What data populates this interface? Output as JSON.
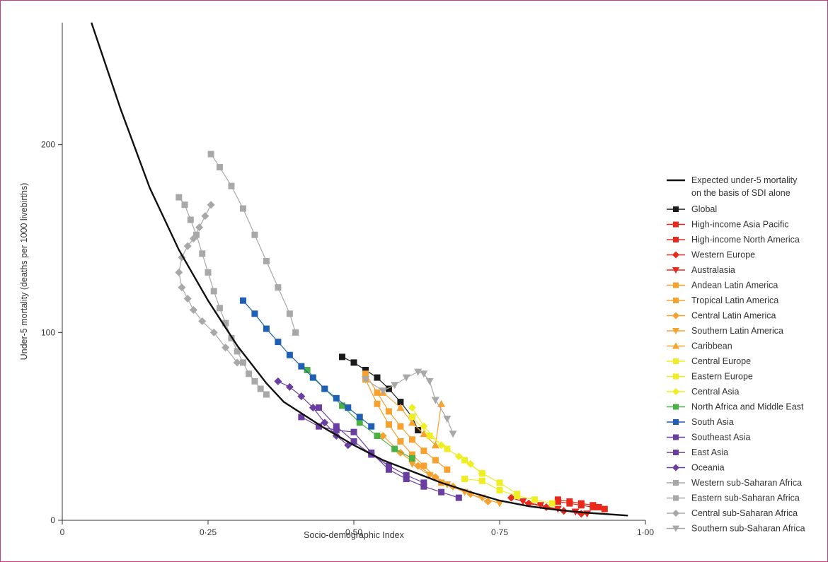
{
  "chart_data": {
    "type": "scatter",
    "title": "",
    "xlabel": "Socio-demographic Index",
    "ylabel": "Under-5 mortality (deaths per 1000 livebirths)",
    "xlim": [
      0,
      1.0
    ],
    "ylim": [
      0,
      265
    ],
    "xticks": [
      {
        "v": 0,
        "label": "0"
      },
      {
        "v": 0.25,
        "label": "0·25"
      },
      {
        "v": 0.5,
        "label": "0·50"
      },
      {
        "v": 0.75,
        "label": "0·75"
      },
      {
        "v": 1.0,
        "label": "1·00"
      }
    ],
    "yticks": [
      {
        "v": 0,
        "label": "0"
      },
      {
        "v": 100,
        "label": "100"
      },
      {
        "v": 200,
        "label": "200"
      }
    ],
    "grid": false,
    "legend_position": "right",
    "expected_curve": {
      "name_lines": [
        "Expected under-5 mortality",
        "on the basis of SDI alone"
      ],
      "color": "#111111",
      "x": [
        0.05,
        0.1,
        0.15,
        0.2,
        0.25,
        0.3,
        0.35,
        0.38,
        0.42,
        0.45,
        0.5,
        0.55,
        0.6,
        0.65,
        0.7,
        0.75,
        0.8,
        0.85,
        0.9,
        0.97
      ],
      "y": [
        265,
        219,
        177,
        144,
        117,
        93,
        73,
        63,
        55,
        49,
        40,
        32,
        26,
        20,
        15,
        10.5,
        7.5,
        5.5,
        4,
        2.5
      ]
    },
    "series": [
      {
        "name": "Global",
        "color": "#1a1a1a",
        "marker": "square",
        "x": [
          0.48,
          0.5,
          0.52,
          0.54,
          0.56,
          0.58,
          0.6,
          0.61
        ],
        "y": [
          87,
          84,
          80,
          76,
          70,
          63,
          55,
          48
        ]
      },
      {
        "name": "High-income Asia Pacific",
        "color": "#e8291c",
        "marker": "square",
        "x": [
          0.85,
          0.87,
          0.89,
          0.91,
          0.93
        ],
        "y": [
          10,
          9,
          8,
          7,
          6
        ]
      },
      {
        "name": "High-income North America",
        "color": "#e8291c",
        "marker": "square",
        "x": [
          0.85,
          0.87,
          0.89,
          0.91,
          0.92
        ],
        "y": [
          11,
          10,
          9,
          8,
          7
        ]
      },
      {
        "name": "Western Europe",
        "color": "#e8291c",
        "marker": "diamond",
        "x": [
          0.77,
          0.8,
          0.83,
          0.86,
          0.89
        ],
        "y": [
          12,
          9,
          7,
          5,
          3.5
        ]
      },
      {
        "name": "Australasia",
        "color": "#e8291c",
        "marker": "triangle-down",
        "x": [
          0.79,
          0.82,
          0.85,
          0.88,
          0.9
        ],
        "y": [
          10,
          8,
          6,
          4.5,
          3.5
        ]
      },
      {
        "name": "Andean Latin America",
        "color": "#f7a12f",
        "marker": "square",
        "x": [
          0.52,
          0.54,
          0.56,
          0.58,
          0.6,
          0.62,
          0.64,
          0.66
        ],
        "y": [
          78,
          68,
          58,
          50,
          43,
          37,
          32,
          27
        ]
      },
      {
        "name": "Tropical Latin America",
        "color": "#f7a12f",
        "marker": "square",
        "x": [
          0.52,
          0.54,
          0.56,
          0.58,
          0.6,
          0.62,
          0.65
        ],
        "y": [
          75,
          62,
          51,
          42,
          35,
          29,
          20
        ]
      },
      {
        "name": "Central Latin America",
        "color": "#f7a12f",
        "marker": "diamond",
        "x": [
          0.55,
          0.58,
          0.61,
          0.64,
          0.67,
          0.7,
          0.73
        ],
        "y": [
          45,
          36,
          29,
          23,
          18,
          14,
          10
        ]
      },
      {
        "name": "Southern Latin America",
        "color": "#f7a12f",
        "marker": "triangle-down",
        "x": [
          0.6,
          0.63,
          0.66,
          0.69,
          0.72,
          0.75
        ],
        "y": [
          30,
          24,
          19,
          15,
          12,
          9
        ]
      },
      {
        "name": "Caribbean",
        "color": "#f7a12f",
        "marker": "triangle-up",
        "x": [
          0.55,
          0.58,
          0.6,
          0.62,
          0.64,
          0.65
        ],
        "y": [
          68,
          60,
          52,
          46,
          40,
          62
        ]
      },
      {
        "name": "Central Europe",
        "color": "#eeee22",
        "marker": "square",
        "x": [
          0.69,
          0.72,
          0.75,
          0.78,
          0.81,
          0.84
        ],
        "y": [
          22,
          21,
          16,
          13,
          11,
          9
        ]
      },
      {
        "name": "Eastern Europe",
        "color": "#eeee22",
        "marker": "square",
        "x": [
          0.6,
          0.63,
          0.66,
          0.69,
          0.72,
          0.75,
          0.78
        ],
        "y": [
          55,
          45,
          38,
          32,
          25,
          20,
          14
        ]
      },
      {
        "name": "Central Asia",
        "color": "#eeee22",
        "marker": "diamond",
        "x": [
          0.6,
          0.62,
          0.65,
          0.68,
          0.7,
          0.72
        ],
        "y": [
          60,
          50,
          40,
          34,
          30,
          25
        ]
      },
      {
        "name": "North Africa and Middle East",
        "color": "#4ab147",
        "marker": "square",
        "x": [
          0.42,
          0.45,
          0.48,
          0.51,
          0.54,
          0.57,
          0.6
        ],
        "y": [
          80,
          70,
          61,
          52,
          45,
          38,
          33
        ]
      },
      {
        "name": "South Asia",
        "color": "#1f5fb4",
        "marker": "square",
        "x": [
          0.31,
          0.33,
          0.35,
          0.37,
          0.39,
          0.41,
          0.43,
          0.45,
          0.47,
          0.49,
          0.51,
          0.53
        ],
        "y": [
          117,
          110,
          102,
          95,
          88,
          82,
          76,
          70,
          65,
          60,
          55,
          50
        ]
      },
      {
        "name": "Southeast Asia",
        "color": "#6a3da0",
        "marker": "square",
        "x": [
          0.44,
          0.47,
          0.5,
          0.53,
          0.56,
          0.59,
          0.62
        ],
        "y": [
          60,
          50,
          42,
          35,
          29,
          24,
          20
        ]
      },
      {
        "name": "East Asia",
        "color": "#6a3da0",
        "marker": "square",
        "x": [
          0.41,
          0.44,
          0.47,
          0.5,
          0.53,
          0.56,
          0.59,
          0.62,
          0.65,
          0.68
        ],
        "y": [
          55,
          50,
          48,
          47,
          36,
          27,
          22,
          18,
          15,
          12
        ]
      },
      {
        "name": "Oceania",
        "color": "#6a3da0",
        "marker": "diamond",
        "x": [
          0.37,
          0.39,
          0.41,
          0.43,
          0.45,
          0.47,
          0.49
        ],
        "y": [
          74,
          71,
          66,
          60,
          52,
          45,
          40
        ]
      },
      {
        "name": "Western sub-Saharan Africa",
        "color": "#a8a8a8",
        "marker": "square",
        "x": [
          0.255,
          0.27,
          0.29,
          0.31,
          0.33,
          0.35,
          0.37,
          0.39,
          0.4
        ],
        "y": [
          195,
          188,
          178,
          166,
          152,
          138,
          124,
          110,
          100
        ]
      },
      {
        "name": "Eastern sub-Saharan Africa",
        "color": "#a8a8a8",
        "marker": "square",
        "x": [
          0.2,
          0.21,
          0.22,
          0.23,
          0.24,
          0.25,
          0.26,
          0.27,
          0.28,
          0.29,
          0.3,
          0.31,
          0.32,
          0.33,
          0.34,
          0.35
        ],
        "y": [
          172,
          168,
          160,
          152,
          142,
          132,
          122,
          113,
          105,
          97,
          90,
          84,
          78,
          74,
          70,
          67
        ]
      },
      {
        "name": "Central sub-Saharan Africa",
        "color": "#a8a8a8",
        "marker": "diamond",
        "x": [
          0.255,
          0.245,
          0.235,
          0.225,
          0.215,
          0.205,
          0.2,
          0.205,
          0.215,
          0.225,
          0.24,
          0.26,
          0.28,
          0.3
        ],
        "y": [
          168,
          162,
          156,
          150,
          146,
          140,
          132,
          124,
          118,
          112,
          106,
          100,
          92,
          84
        ]
      },
      {
        "name": "Southern sub-Saharan Africa",
        "color": "#a8a8a8",
        "marker": "triangle-down",
        "x": [
          0.52,
          0.55,
          0.57,
          0.59,
          0.61,
          0.62,
          0.63,
          0.64,
          0.66,
          0.67
        ],
        "y": [
          75,
          69,
          72,
          76,
          79,
          78,
          74,
          64,
          54,
          46
        ]
      }
    ]
  }
}
